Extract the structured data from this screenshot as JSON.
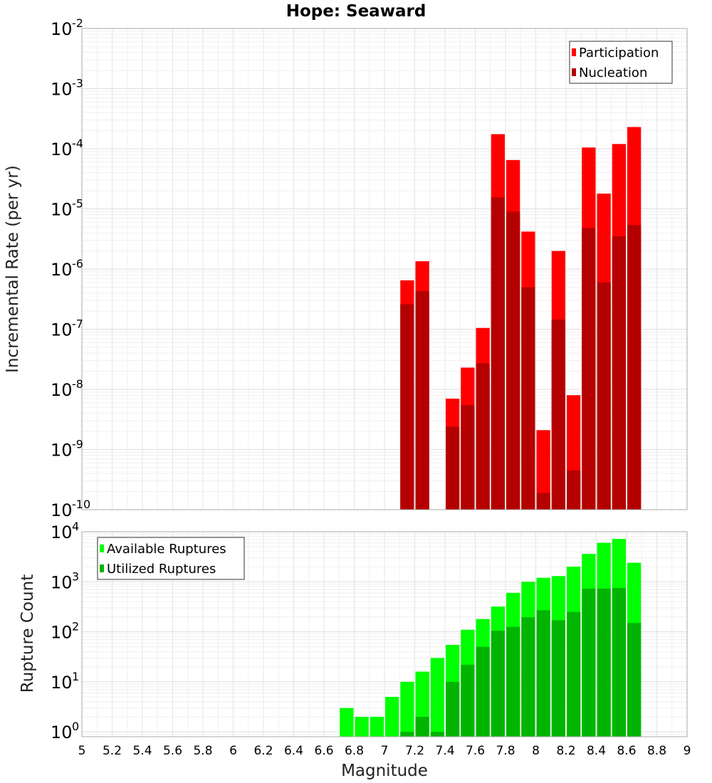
{
  "chart_data": [
    {
      "type": "bar",
      "title": "Hope: Seaward",
      "ylabel": "Incremental Rate (per yr)",
      "xlabel": "",
      "yscale": "log",
      "ylim": [
        1e-10,
        0.01
      ],
      "xlim": [
        5,
        9
      ],
      "ytick_exponents": [
        "-2",
        "-3",
        "-4",
        "-5",
        "-6",
        "-7",
        "-8",
        "-9",
        "-10"
      ],
      "legend": {
        "placement": "top-right",
        "entries": [
          "Participation",
          "Nucleation"
        ]
      },
      "colors": {
        "Participation": "#ff0000",
        "Nucleation": "#b40000"
      },
      "grid": true,
      "x": [
        7.15,
        7.25,
        7.45,
        7.55,
        7.65,
        7.75,
        7.85,
        7.95,
        8.05,
        8.15,
        8.25,
        8.35,
        8.45,
        8.55,
        8.65
      ],
      "series": [
        {
          "name": "Participation",
          "values": [
            6.5e-07,
            1.35e-06,
            7e-09,
            2.3e-08,
            1.05e-07,
            0.000175,
            6.5e-05,
            4.2e-06,
            2.1e-09,
            2e-06,
            8e-09,
            0.000105,
            1.8e-05,
            0.00012,
            0.00023
          ]
        },
        {
          "name": "Nucleation",
          "values": [
            2.6e-07,
            4.3e-07,
            2.4e-09,
            5.5e-09,
            2.7e-08,
            1.55e-05,
            9e-06,
            5e-07,
            1.9e-10,
            1.45e-07,
            4.5e-10,
            4.8e-06,
            6e-07,
            3.5e-06,
            5.4e-06
          ]
        }
      ]
    },
    {
      "type": "bar",
      "title": "",
      "ylabel": "Rupture Count",
      "xlabel": "Magnitude",
      "yscale": "log",
      "ylim": [
        0.8,
        10000
      ],
      "xlim": [
        5,
        9
      ],
      "ytick_exponents": [
        "4",
        "3",
        "2",
        "1",
        "0"
      ],
      "xticks": [
        "5",
        "5.2",
        "5.4",
        "5.6",
        "5.8",
        "6",
        "6.2",
        "6.4",
        "6.6",
        "6.8",
        "7",
        "7.2",
        "7.4",
        "7.6",
        "7.8",
        "8",
        "8.2",
        "8.4",
        "8.6",
        "8.8",
        "9"
      ],
      "legend": {
        "placement": "top-left",
        "entries": [
          "Available Ruptures",
          "Utilized Ruptures"
        ]
      },
      "colors": {
        "Available Ruptures": "#00ff00",
        "Utilized Ruptures": "#00b400"
      },
      "grid": true,
      "x": [
        6.75,
        6.85,
        6.95,
        7.05,
        7.15,
        7.25,
        7.35,
        7.45,
        7.55,
        7.65,
        7.75,
        7.85,
        7.95,
        8.05,
        8.15,
        8.25,
        8.35,
        8.45,
        8.55,
        8.65
      ],
      "series": [
        {
          "name": "Available Ruptures",
          "values": [
            3,
            2,
            2,
            5,
            10,
            16,
            30,
            55,
            110,
            180,
            320,
            600,
            1000,
            1200,
            1300,
            2000,
            3600,
            6000,
            7200,
            2400
          ]
        },
        {
          "name": "Utilized Ruptures",
          "values": [
            0,
            0,
            0,
            0,
            1,
            2,
            1,
            10,
            22,
            50,
            105,
            125,
            195,
            270,
            170,
            250,
            730,
            730,
            750,
            150
          ]
        }
      ]
    }
  ]
}
